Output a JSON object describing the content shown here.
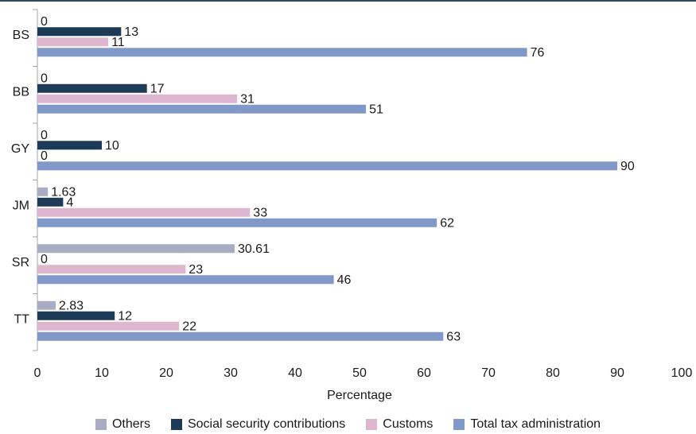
{
  "colors": {
    "top_rule": "#2f4b6a",
    "axis": "#a6a6a6",
    "Others": "#a9adc4",
    "Social security contributions": "#1d3a56",
    "Customs": "#ddb6d0",
    "Total tax administration": "#8199c8"
  },
  "chart_data": {
    "type": "bar",
    "orientation": "horizontal",
    "categories": [
      "BS",
      "BB",
      "GY",
      "JM",
      "SR",
      "TT"
    ],
    "series": [
      {
        "name": "Others",
        "values": [
          0,
          0,
          0,
          1.63,
          30.61,
          2.83
        ]
      },
      {
        "name": "Social security contributions",
        "values": [
          13,
          17,
          10,
          4,
          0,
          12
        ]
      },
      {
        "name": "Customs",
        "values": [
          11,
          31,
          0,
          33,
          23,
          22
        ]
      },
      {
        "name": "Total tax administration",
        "values": [
          76,
          51,
          90,
          62,
          46,
          63
        ]
      }
    ],
    "value_labels": [
      [
        "0",
        "0",
        "0",
        "1.63",
        "30.61",
        "2.83"
      ],
      [
        "13",
        "17",
        "10",
        "4",
        "0",
        "12"
      ],
      [
        "11",
        "31",
        "0",
        "33",
        "23",
        "22"
      ],
      [
        "76",
        "51",
        "90",
        "62",
        "46",
        "63"
      ]
    ],
    "xlabel": "Percentage",
    "xlim": [
      0,
      100
    ],
    "xticks": [
      0,
      10,
      20,
      30,
      40,
      50,
      60,
      70,
      80,
      90,
      100
    ],
    "xtick_labels": [
      "0",
      "10",
      "20",
      "30",
      "40",
      "50",
      "60",
      "70",
      "80",
      "90",
      "100"
    ],
    "grid": false,
    "legend_position": "bottom"
  },
  "legend": {
    "items": [
      {
        "label": "Others",
        "color": "#a9adc4"
      },
      {
        "label": "Social security contributions",
        "color": "#1d3a56"
      },
      {
        "label": "Customs",
        "color": "#ddb6d0"
      },
      {
        "label": "Total tax administration",
        "color": "#8199c8"
      }
    ]
  }
}
